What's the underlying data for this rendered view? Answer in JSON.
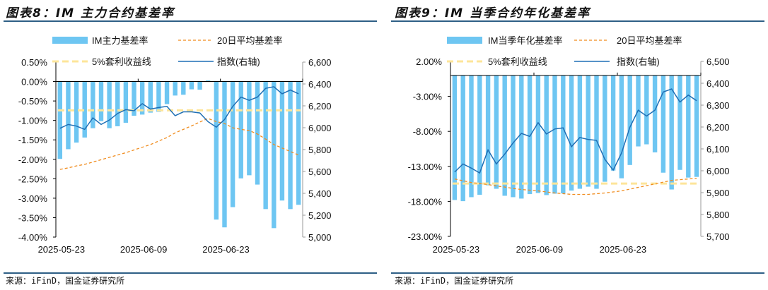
{
  "charts_meta": {
    "left_title": "图表8：IM 主力合约基差率",
    "right_title": "图表9：IM 当季合约年化基差率",
    "source": "来源：iFinD，国金证券研究所"
  },
  "colors": {
    "bar": "#6ec6f2",
    "avg": "#f08c1e",
    "arb": "#fde59a",
    "index": "#1f6fb5",
    "rule": "#2e5f86"
  },
  "chart_data": [
    {
      "type": "bar+line",
      "title": "图表8：IM 主力合约基差率",
      "legend": [
        "IM主力基差率",
        "20日平均基差率",
        "5%套利收益线",
        "指数(右轴)"
      ],
      "legend_placement": "top",
      "x_tick_labels": [
        "2025-05-23",
        "2025-06-09",
        "2025-06-23"
      ],
      "y_left": {
        "ticks": [
          "0.50%",
          "0.00%",
          "-0.50%",
          "-1.00%",
          "-1.50%",
          "-2.00%",
          "-2.50%",
          "-3.00%",
          "-3.50%",
          "-4.00%"
        ],
        "range": [
          -4.0,
          0.5
        ]
      },
      "y_right": {
        "ticks": [
          "6,600",
          "6,400",
          "6,200",
          "6,000",
          "5,800",
          "5,600",
          "5,400",
          "5,200",
          "5,000"
        ],
        "range": [
          5000,
          6600
        ]
      },
      "series": [
        {
          "name": "IM主力基差率",
          "type": "bar",
          "values": [
            -1.99,
            -1.74,
            -1.57,
            -1.44,
            -1.2,
            -1.02,
            -1.2,
            -1.15,
            -1.06,
            -0.88,
            -0.85,
            -0.8,
            -0.78,
            -0.58,
            -0.36,
            -0.34,
            -0.2,
            -0.21,
            0.03,
            -3.55,
            -3.75,
            -3.23,
            -2.49,
            -2.41,
            -2.65,
            -3.28,
            -3.77,
            -3.06,
            -3.28,
            -3.17
          ]
        },
        {
          "name": "20日平均基差率",
          "type": "dashed-line",
          "values": [
            -2.26,
            -2.22,
            -2.17,
            -2.13,
            -2.07,
            -2.01,
            -1.95,
            -1.89,
            -1.83,
            -1.76,
            -1.69,
            -1.62,
            -1.53,
            -1.44,
            -1.32,
            -1.23,
            -1.14,
            -1.04,
            -0.95,
            -1.03,
            -1.08,
            -1.19,
            -1.23,
            -1.26,
            -1.35,
            -1.48,
            -1.62,
            -1.71,
            -1.8,
            -1.89
          ]
        },
        {
          "name": "5%套利收益线",
          "type": "dashed-line",
          "values": [
            -0.74,
            -0.74,
            -0.74,
            -0.74,
            -0.74,
            -0.74,
            -0.74,
            -0.74,
            -0.74,
            -0.74,
            -0.74,
            -0.74,
            -0.74,
            -0.74,
            -0.74,
            -0.74,
            -0.74,
            -0.74,
            -0.74,
            -0.74,
            -0.74,
            -0.74,
            -0.74,
            -0.74,
            -0.74,
            -0.74,
            -0.74,
            -0.74,
            -0.74,
            -0.74
          ]
        },
        {
          "name": "指数(右轴)",
          "type": "line",
          "axis": "right",
          "values": [
            5995,
            6030,
            6015,
            5985,
            6090,
            6030,
            6070,
            6130,
            6165,
            6155,
            6220,
            6170,
            6185,
            6195,
            6110,
            6145,
            6145,
            6135,
            6055,
            6005,
            6075,
            6195,
            6280,
            6250,
            6280,
            6360,
            6375,
            6310,
            6345,
            6310
          ]
        }
      ]
    },
    {
      "type": "bar+line",
      "title": "图表9：IM 当季合约年化基差率",
      "legend": [
        "IM当季年化基差率",
        "20日平均基差率",
        "5%套利收益线",
        "指数(右轴)"
      ],
      "legend_placement": "top",
      "x_tick_labels": [
        "2025-05-23",
        "2025-06-09",
        "2025-06-23"
      ],
      "y_left": {
        "ticks": [
          "2.00%",
          "-3.00%",
          "-8.00%",
          "-13.00%",
          "-18.00%",
          "-23.00%"
        ],
        "range": [
          -23,
          2
        ]
      },
      "y_right": {
        "ticks": [
          "6,500",
          "6,400",
          "6,300",
          "6,200",
          "6,100",
          "6,000",
          "5,900",
          "5,800",
          "5,700"
        ],
        "range": [
          5700,
          6500
        ]
      },
      "series": [
        {
          "name": "IM当季年化基差率",
          "type": "bar",
          "values": [
            -17.8,
            -17.97,
            -17.4,
            -17.06,
            -15.7,
            -16.2,
            -17.2,
            -17.4,
            -17.6,
            -16.96,
            -16.8,
            -17.1,
            -16.9,
            -16.86,
            -16.46,
            -16.2,
            -15.9,
            -16.2,
            -15.2,
            -13.6,
            -14.7,
            -12.8,
            -10.15,
            -9.85,
            -11.0,
            -13.9,
            -16.3,
            -13.5,
            -14.6,
            -14.5
          ]
        },
        {
          "name": "20日平均基差率",
          "type": "dashed-line",
          "values": [
            -14.8,
            -15.05,
            -15.3,
            -15.45,
            -15.6,
            -15.8,
            -15.95,
            -16.15,
            -16.3,
            -16.4,
            -16.5,
            -16.65,
            -16.8,
            -16.9,
            -17.0,
            -17.0,
            -17.0,
            -16.9,
            -16.8,
            -16.65,
            -16.5,
            -16.25,
            -16.0,
            -15.75,
            -15.5,
            -15.25,
            -15.0,
            -14.9,
            -14.8,
            -14.7
          ]
        },
        {
          "name": "5%套利收益线",
          "type": "dashed-line",
          "values": [
            -15.45,
            -15.45,
            -15.45,
            -15.45,
            -15.45,
            -15.45,
            -15.45,
            -15.45,
            -15.45,
            -15.45,
            -15.45,
            -15.45,
            -15.45,
            -15.45,
            -15.45,
            -15.45,
            -15.45,
            -15.45,
            -15.45,
            -15.45,
            -15.45,
            -15.45,
            -15.45,
            -15.45,
            -15.45,
            -15.45,
            -15.45,
            -15.45,
            -15.45,
            -15.45
          ]
        },
        {
          "name": "指数(右轴)",
          "type": "line",
          "axis": "right",
          "values": [
            5994,
            6031,
            6012,
            5990,
            6095,
            6031,
            6076,
            6127,
            6171,
            6157,
            6220,
            6168,
            6191,
            6196,
            6110,
            6152,
            6143,
            6139,
            6052,
            6003,
            6081,
            6199,
            6277,
            6250,
            6277,
            6360,
            6374,
            6314,
            6346,
            6320
          ]
        }
      ]
    }
  ]
}
